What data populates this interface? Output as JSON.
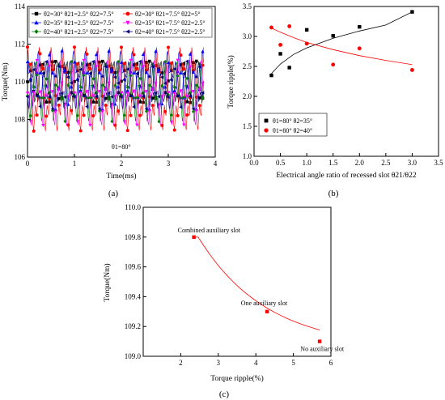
{
  "chart_data": [
    {
      "panel_label": "(a)",
      "type": "line",
      "xlabel": "Time(ms)",
      "ylabel": "Torque(Nm)",
      "xlim": [
        0,
        4
      ],
      "ylim": [
        106,
        114
      ],
      "xticks": [
        "0",
        "1",
        "2",
        "3",
        "4"
      ],
      "yticks": [
        "106",
        "108",
        "110",
        "112",
        "114"
      ],
      "annotation": "θ1=80°",
      "legend_position": "top",
      "series": [
        {
          "name": "θ2=30° θ21=2.5° θ22=7.5°",
          "color": "#000000",
          "marker": "square",
          "mean": 110.0,
          "amp": 1.4
        },
        {
          "name": "θ2=30° θ21=7.5° θ22=5°",
          "color": "#ff0000",
          "marker": "circle",
          "mean": 109.6,
          "amp": 2.4
        },
        {
          "name": "θ2=35° θ21=2.5° θ22=7.5°",
          "color": "#0000ff",
          "marker": "triangle-up",
          "mean": 110.1,
          "amp": 1.5
        },
        {
          "name": "θ2=35° θ21=7.5° θ22=2.5°",
          "color": "#ff00ff",
          "marker": "triangle-down",
          "mean": 109.4,
          "amp": 1.6
        },
        {
          "name": "θ2=40° θ21=2.5° θ22=7.5°",
          "color": "#008000",
          "marker": "diamond",
          "mean": 109.5,
          "amp": 1.5
        },
        {
          "name": "θ2=40° θ21=7.5° θ22=2.5°",
          "color": "#000080",
          "marker": "triangle-left",
          "mean": 109.8,
          "amp": 1.3
        }
      ]
    },
    {
      "panel_label": "(b)",
      "type": "scatter",
      "xlabel": "Electrical angle ratio of recessed slot θ21/θ22",
      "ylabel": "Torque ripple(%)",
      "xlim": [
        0,
        3.5
      ],
      "ylim": [
        1.0,
        3.5
      ],
      "xticks": [
        "0.0",
        "0.5",
        "1.0",
        "1.5",
        "2.0",
        "2.5",
        "3.0",
        "3.5"
      ],
      "yticks": [
        "1.0",
        "1.5",
        "2.0",
        "2.5",
        "3.0",
        "3.5"
      ],
      "legend_position": "bottom-left",
      "series": [
        {
          "name": "θ1=80° θ2=35°",
          "color": "#000000",
          "marker": "square",
          "points": [
            [
              0.33,
              2.35
            ],
            [
              0.5,
              2.71
            ],
            [
              0.67,
              2.48
            ],
            [
              1.0,
              3.11
            ],
            [
              1.5,
              3.01
            ],
            [
              2.0,
              3.16
            ],
            [
              3.0,
              3.41
            ]
          ],
          "fit": [
            [
              0.33,
              2.38
            ],
            [
              0.5,
              2.54
            ],
            [
              0.75,
              2.7
            ],
            [
              1.0,
              2.81
            ],
            [
              1.5,
              2.97
            ],
            [
              2.0,
              3.09
            ],
            [
              2.5,
              3.19
            ],
            [
              3.0,
              3.41
            ]
          ]
        },
        {
          "name": "θ1=80° θ2=40°",
          "color": "#ff0000",
          "marker": "circle",
          "points": [
            [
              0.33,
              3.15
            ],
            [
              0.5,
              2.86
            ],
            [
              0.67,
              3.17
            ],
            [
              1.0,
              2.88
            ],
            [
              1.5,
              2.53
            ],
            [
              2.0,
              2.8
            ],
            [
              3.0,
              2.44
            ]
          ],
          "fit": [
            [
              0.33,
              3.14
            ],
            [
              0.5,
              3.07
            ],
            [
              0.75,
              2.98
            ],
            [
              1.0,
              2.9
            ],
            [
              1.5,
              2.78
            ],
            [
              2.0,
              2.68
            ],
            [
              2.5,
              2.6
            ],
            [
              3.0,
              2.53
            ]
          ]
        }
      ]
    },
    {
      "panel_label": "(c)",
      "type": "line",
      "xlabel": "Torque ripple(%)",
      "ylabel": "Torque(Nm)",
      "xlim": [
        1,
        6
      ],
      "ylim": [
        109.0,
        110.0
      ],
      "xticks": [
        "2",
        "3",
        "4",
        "5",
        "6"
      ],
      "yticks": [
        "109.0",
        "109.2",
        "109.4",
        "109.6",
        "109.8",
        "110.0"
      ],
      "color": "#ff0000",
      "points": [
        {
          "x": 2.35,
          "y": 109.8,
          "label": "Combined auxiliary slot"
        },
        {
          "x": 4.3,
          "y": 109.3,
          "label": "One auxiliary slot"
        },
        {
          "x": 5.7,
          "y": 109.1,
          "label": "No auxiliary slot"
        }
      ]
    }
  ]
}
